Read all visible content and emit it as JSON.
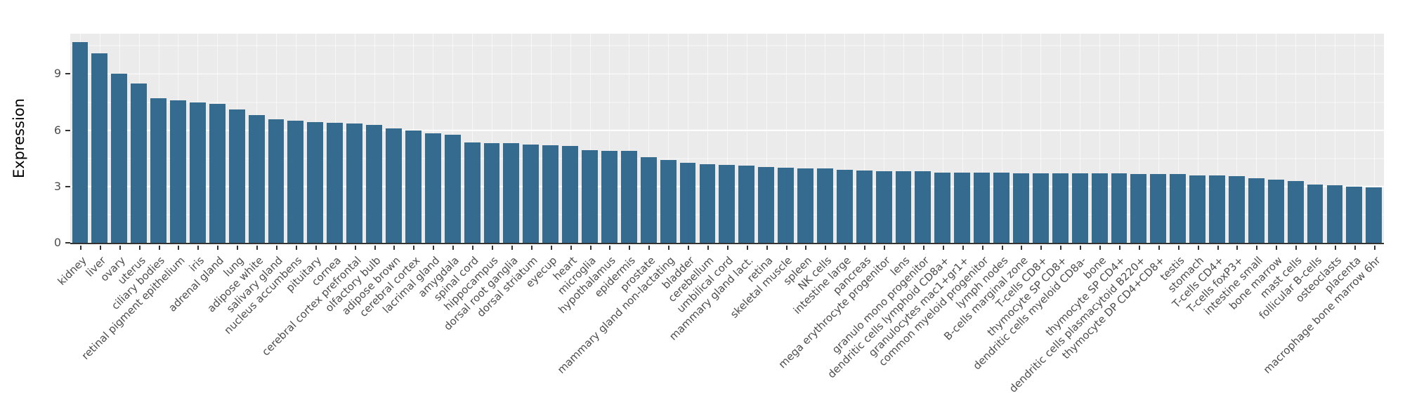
{
  "chart_data": {
    "type": "bar",
    "title": "",
    "xlabel": "",
    "ylabel": "Expression",
    "ylim": [
      0,
      11.15
    ],
    "yticks": [
      0,
      3,
      6,
      9
    ],
    "yticks_minor": [
      1.5,
      4.5,
      7.5,
      10.5
    ],
    "grid": "on",
    "legend": "none",
    "bar_color": "#366B90",
    "panel_bg": "#EBEBEB",
    "grid_major_color": "#FFFFFF",
    "axis_text_color": "#4D4D4D",
    "categories": [
      "kidney",
      "liver",
      "ovary",
      "uterus",
      "ciliary bodies",
      "retinal pigment epithelium",
      "iris",
      "adrenal gland",
      "lung",
      "adipose white",
      "salivary gland",
      "nucleus accumbens",
      "pituitary",
      "cornea",
      "cerebral cortex prefrontal",
      "olfactory bulb",
      "adipose brown",
      "cerebral cortex",
      "lacrimal gland",
      "amygdala",
      "spinal cord",
      "hippocampus",
      "dorsal root ganglia",
      "dorsal striatum",
      "eyecup",
      "heart",
      "microglia",
      "hypothalamus",
      "epidermis",
      "prostate",
      "mammary gland non-lactating",
      "bladder",
      "cerebellum",
      "umbilical cord",
      "mammary gland lact.",
      "retina",
      "skeletal muscle",
      "spleen",
      "NK cells",
      "intestine large",
      "pancreas",
      "mega erythrocyte progenitor",
      "lens",
      "granulo mono progenitor",
      "dendritic cells lymphoid CD8a+",
      "granulocytes mac1+gr1+",
      "common myeloid progenitor",
      "lymph nodes",
      "B-cells marginal zone",
      "T-cells CD8+",
      "thymocyte SP CD8+",
      "dendritic cells myeloid CD8a-",
      "bone",
      "thymocyte SP CD4+",
      "dendritic cells plasmacytoid B220+",
      "thymocyte DP CD4+CD8+",
      "testis",
      "stomach",
      "T-cells CD4+",
      "T-cells foxP3+",
      "intestine small",
      "bone marrow",
      "mast cells",
      "follicular B-cells",
      "osteoclasts",
      "placenta",
      "macrophage bone marrow 6hr"
    ],
    "values": [
      10.7,
      10.1,
      9.0,
      8.5,
      7.7,
      7.6,
      7.5,
      7.4,
      7.1,
      6.8,
      6.6,
      6.5,
      6.45,
      6.4,
      6.35,
      6.3,
      6.1,
      6.0,
      5.85,
      5.75,
      5.35,
      5.3,
      5.3,
      5.25,
      5.2,
      5.15,
      4.95,
      4.9,
      4.9,
      4.55,
      4.4,
      4.25,
      4.2,
      4.15,
      4.1,
      4.05,
      4.0,
      3.95,
      3.95,
      3.9,
      3.85,
      3.8,
      3.8,
      3.8,
      3.75,
      3.75,
      3.75,
      3.75,
      3.7,
      3.7,
      3.7,
      3.7,
      3.7,
      3.7,
      3.65,
      3.65,
      3.65,
      3.6,
      3.6,
      3.55,
      3.45,
      3.35,
      3.3,
      3.1,
      3.05,
      3.0,
      2.95
    ]
  }
}
